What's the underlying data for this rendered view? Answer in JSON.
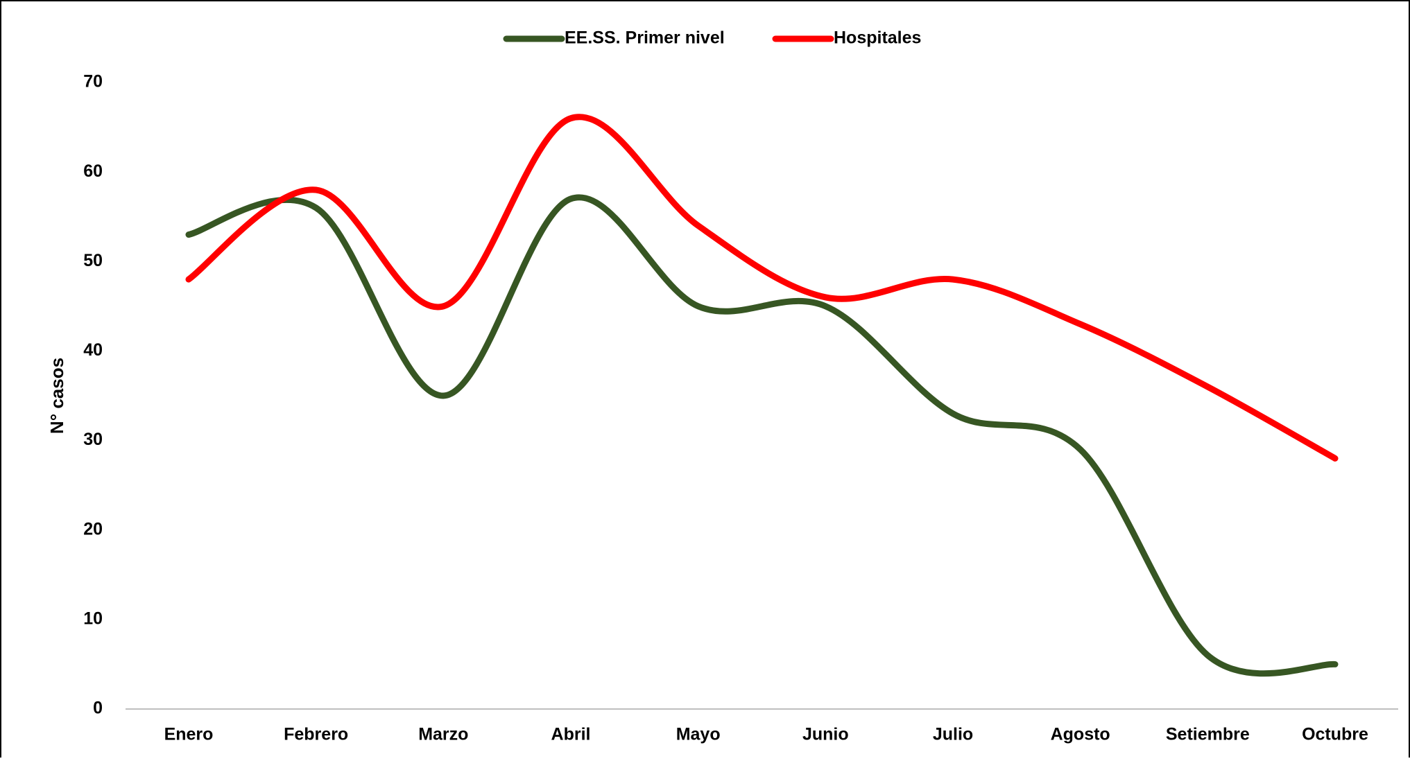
{
  "chart_data": {
    "type": "line",
    "y_label": "N° casos",
    "categories": [
      "Enero",
      "Febrero",
      "Marzo",
      "Abril",
      "Mayo",
      "Junio",
      "Julio",
      "Agosto",
      "Setiembre",
      "Octubre"
    ],
    "series": [
      {
        "name": "EE.SS. Primer nivel",
        "color": "#375623",
        "values": [
          53,
          56,
          35,
          57,
          45,
          45,
          33,
          29,
          6,
          5
        ]
      },
      {
        "name": "Hospitales",
        "color": "#ff0000",
        "values": [
          48,
          58,
          45,
          66,
          54,
          46,
          48,
          43,
          36,
          28
        ]
      }
    ],
    "ylim": [
      0,
      70
    ],
    "yticks": [
      0,
      10,
      20,
      30,
      40,
      50,
      60,
      70
    ],
    "smooth": true,
    "legend": "top"
  }
}
